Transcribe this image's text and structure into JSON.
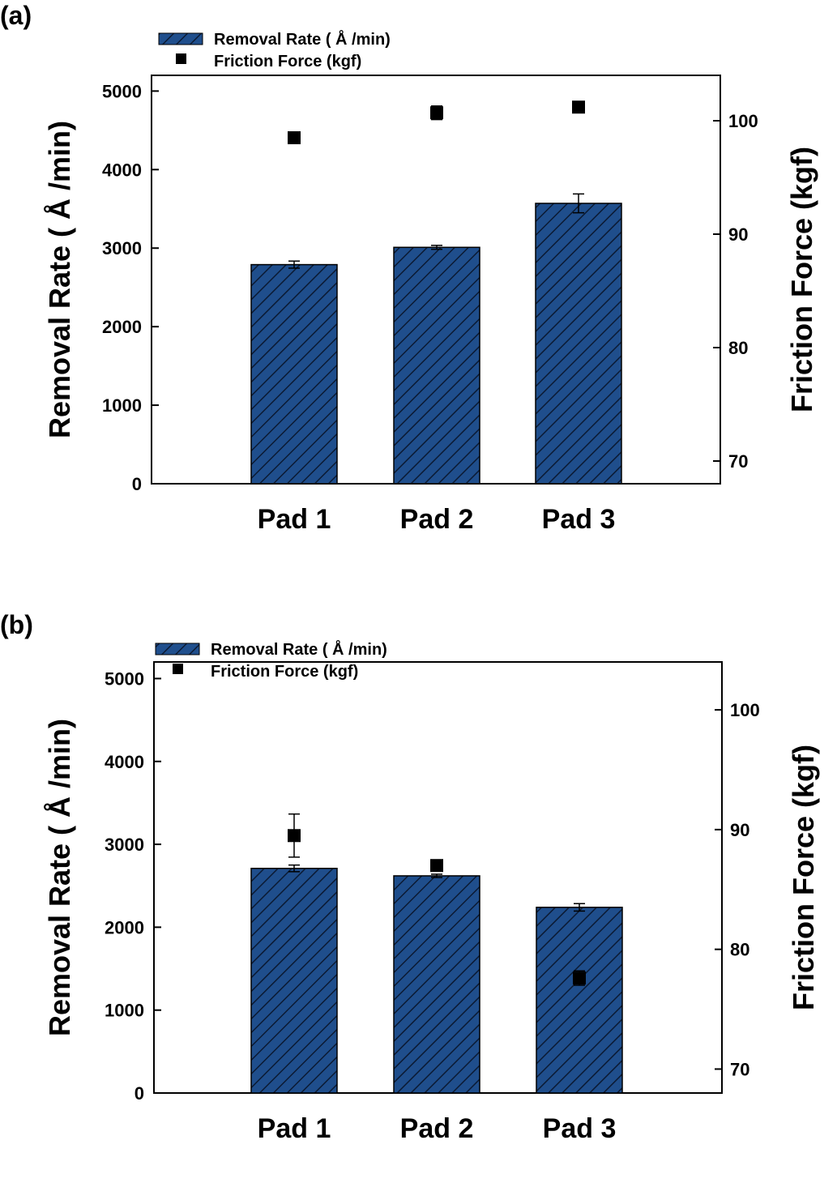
{
  "colors": {
    "bar_fill": "#1f4e8c",
    "hatch": "#0b1a33",
    "marker": "#000000",
    "axis": "#000000"
  },
  "chart_data": [
    {
      "type": "bar",
      "panel_label": "(a)",
      "categories": [
        "Pad 1",
        "Pad 2",
        "Pad 3"
      ],
      "ylabel": "Removal Rate ( Å /min)",
      "y2label": "Friction Force (kgf)",
      "ylim": [
        0,
        5200
      ],
      "y2lim": [
        68,
        104
      ],
      "yticks": [
        0,
        1000,
        2000,
        3000,
        4000,
        5000
      ],
      "y2ticks": [
        70,
        80,
        90,
        100
      ],
      "legend": [
        "Removal Rate ( Å /min)",
        "Friction Force (kgf)"
      ],
      "legend_position": "top-left",
      "series": [
        {
          "name": "Removal Rate ( Å /min)",
          "kind": "bar",
          "axis": "left",
          "values": [
            2790,
            3010,
            3570
          ],
          "errors": [
            45,
            25,
            120
          ]
        },
        {
          "name": "Friction Force (kgf)",
          "kind": "scatter",
          "axis": "right",
          "values": [
            98.5,
            100.7,
            101.2
          ],
          "errors": [
            0,
            0.6,
            0
          ]
        }
      ]
    },
    {
      "type": "bar",
      "panel_label": "(b)",
      "categories": [
        "Pad 1",
        "Pad 2",
        "Pad 3"
      ],
      "ylabel": "Removal Rate ( Å /min)",
      "y2label": "Friction Force (kgf)",
      "ylim": [
        0,
        5200
      ],
      "y2lim": [
        68,
        104
      ],
      "yticks": [
        0,
        1000,
        2000,
        3000,
        4000,
        5000
      ],
      "y2ticks": [
        70,
        80,
        90,
        100
      ],
      "legend": [
        "Removal Rate ( Å /min)",
        "Friction Force (kgf)"
      ],
      "legend_position": "top-left",
      "series": [
        {
          "name": "Removal Rate ( Å /min)",
          "kind": "bar",
          "axis": "left",
          "values": [
            2710,
            2620,
            2240
          ],
          "errors": [
            40,
            20,
            45
          ]
        },
        {
          "name": "Friction Force (kgf)",
          "kind": "scatter",
          "axis": "right",
          "values": [
            89.5,
            87.0,
            77.6
          ],
          "errors": [
            1.8,
            0,
            0.6
          ]
        }
      ]
    }
  ]
}
